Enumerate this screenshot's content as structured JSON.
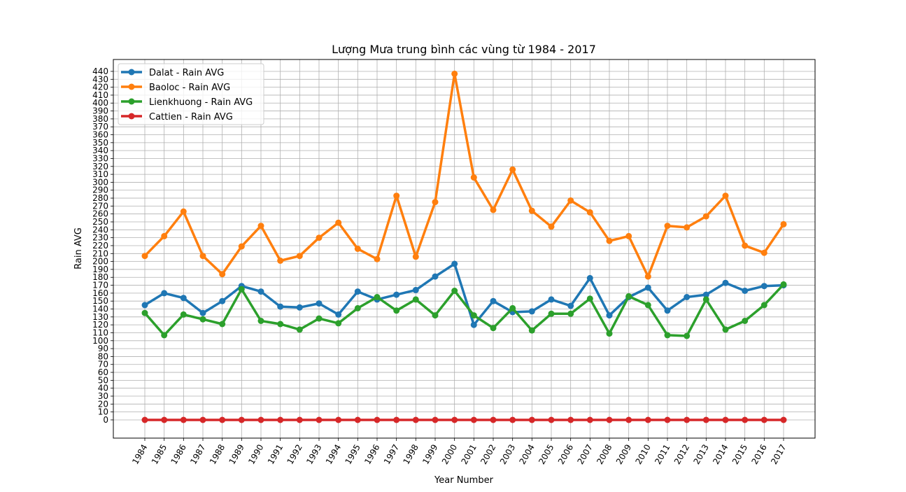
{
  "chart_data": {
    "type": "line",
    "title": "Lượng Mưa trung bình các vùng từ 1984 - 2017",
    "xlabel": "Year Number",
    "ylabel": "Rain AVG",
    "ylim": [
      -23,
      455
    ],
    "ytick_step": 10,
    "ytick_max": 440,
    "grid": true,
    "legend_position": "top-left",
    "categories": [
      "1984",
      "1985",
      "1986",
      "1987",
      "1988",
      "1989",
      "1990",
      "1991",
      "1992",
      "1993",
      "1994",
      "1995",
      "1996",
      "1997",
      "1998",
      "1999",
      "2000",
      "2001",
      "2002",
      "2003",
      "2004",
      "2005",
      "2006",
      "2007",
      "2008",
      "2009",
      "2010",
      "2011",
      "2012",
      "2013",
      "2014",
      "2015",
      "2016",
      "2017"
    ],
    "series": [
      {
        "name": "Dalat - Rain AVG",
        "color": "#1f77b4",
        "values": [
          145,
          160,
          154,
          135,
          150,
          169,
          162,
          143,
          142,
          147,
          133,
          162,
          152,
          158,
          164,
          181,
          197,
          120,
          150,
          136,
          137,
          152,
          144,
          179,
          132,
          155,
          167,
          138,
          155,
          158,
          173,
          163,
          169,
          170
        ]
      },
      {
        "name": "Baoloc - Rain AVG",
        "color": "#ff7f0e",
        "values": [
          207,
          232,
          263,
          207,
          184,
          219,
          245,
          201,
          207,
          230,
          249,
          216,
          203,
          283,
          206,
          275,
          437,
          306,
          265,
          316,
          264,
          244,
          277,
          262,
          226,
          232,
          181,
          245,
          243,
          257,
          283,
          220,
          211,
          247
        ]
      },
      {
        "name": "Lienkhuong - Rain AVG",
        "color": "#2ca02c",
        "values": [
          135,
          107,
          133,
          127,
          121,
          165,
          125,
          121,
          114,
          128,
          122,
          141,
          155,
          138,
          152,
          132,
          163,
          132,
          116,
          141,
          113,
          134,
          134,
          153,
          109,
          156,
          145,
          107,
          106,
          152,
          114,
          125,
          145,
          171
        ]
      },
      {
        "name": "Cattien - Rain AVG",
        "color": "#d62728",
        "values": [
          0,
          0,
          0,
          0,
          0,
          0,
          0,
          0,
          0,
          0,
          0,
          0,
          0,
          0,
          0,
          0,
          0,
          0,
          0,
          0,
          0,
          0,
          0,
          0,
          0,
          0,
          0,
          0,
          0,
          0,
          0,
          0,
          0,
          0
        ]
      }
    ]
  }
}
